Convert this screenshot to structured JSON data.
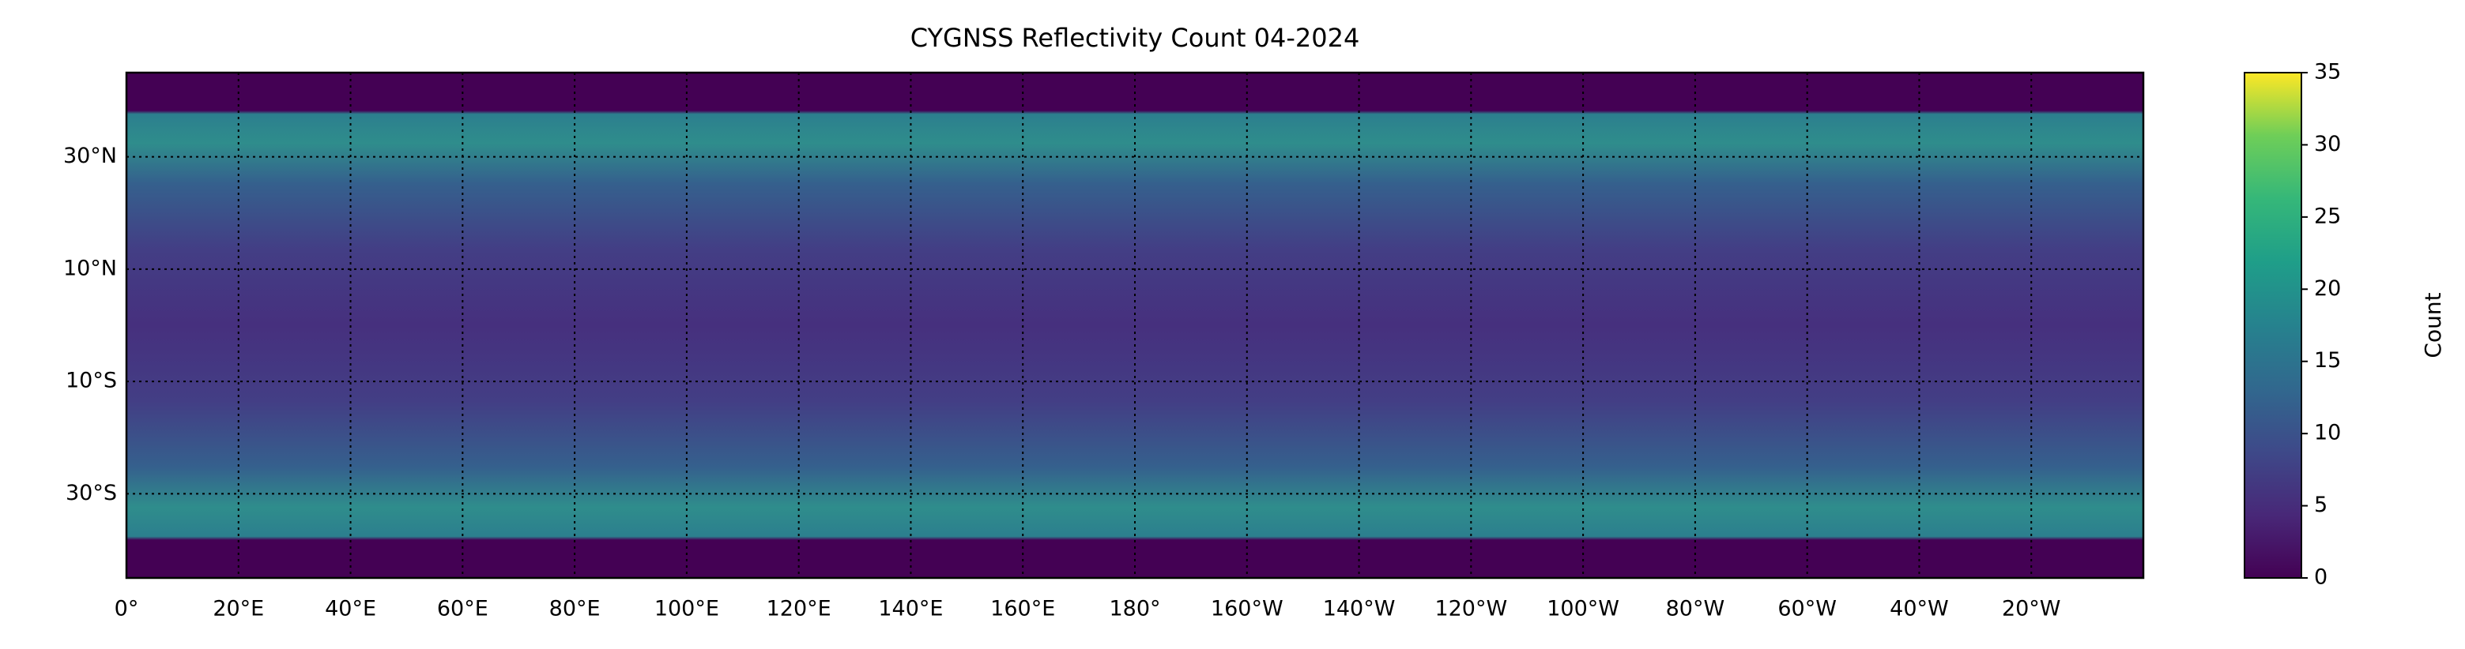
{
  "title": "CYGNSS Reflectivity Count 04-2024",
  "map": {
    "lonlim": [
      0,
      360
    ],
    "latlim": [
      -45,
      45
    ],
    "lat_ticks": [
      {
        "value": 30,
        "label": "30°N"
      },
      {
        "value": 10,
        "label": "10°N"
      },
      {
        "value": -10,
        "label": "10°S"
      },
      {
        "value": -30,
        "label": "30°S"
      }
    ],
    "lon_ticks": [
      {
        "value": 0,
        "label": "0°"
      },
      {
        "value": 20,
        "label": "20°E"
      },
      {
        "value": 40,
        "label": "40°E"
      },
      {
        "value": 60,
        "label": "60°E"
      },
      {
        "value": 80,
        "label": "80°E"
      },
      {
        "value": 100,
        "label": "100°E"
      },
      {
        "value": 120,
        "label": "120°E"
      },
      {
        "value": 140,
        "label": "140°E"
      },
      {
        "value": 160,
        "label": "160°E"
      },
      {
        "value": 180,
        "label": "180°"
      },
      {
        "value": 200,
        "label": "160°W"
      },
      {
        "value": 220,
        "label": "140°W"
      },
      {
        "value": 240,
        "label": "120°W"
      },
      {
        "value": 260,
        "label": "100°W"
      },
      {
        "value": 280,
        "label": "80°W"
      },
      {
        "value": 300,
        "label": "60°W"
      },
      {
        "value": 320,
        "label": "40°W"
      },
      {
        "value": 340,
        "label": "20°W"
      }
    ]
  },
  "colorbar": {
    "label": "Count",
    "lim": [
      0,
      35
    ],
    "ticks": [
      0,
      5,
      10,
      15,
      20,
      25,
      30,
      35
    ]
  }
}
